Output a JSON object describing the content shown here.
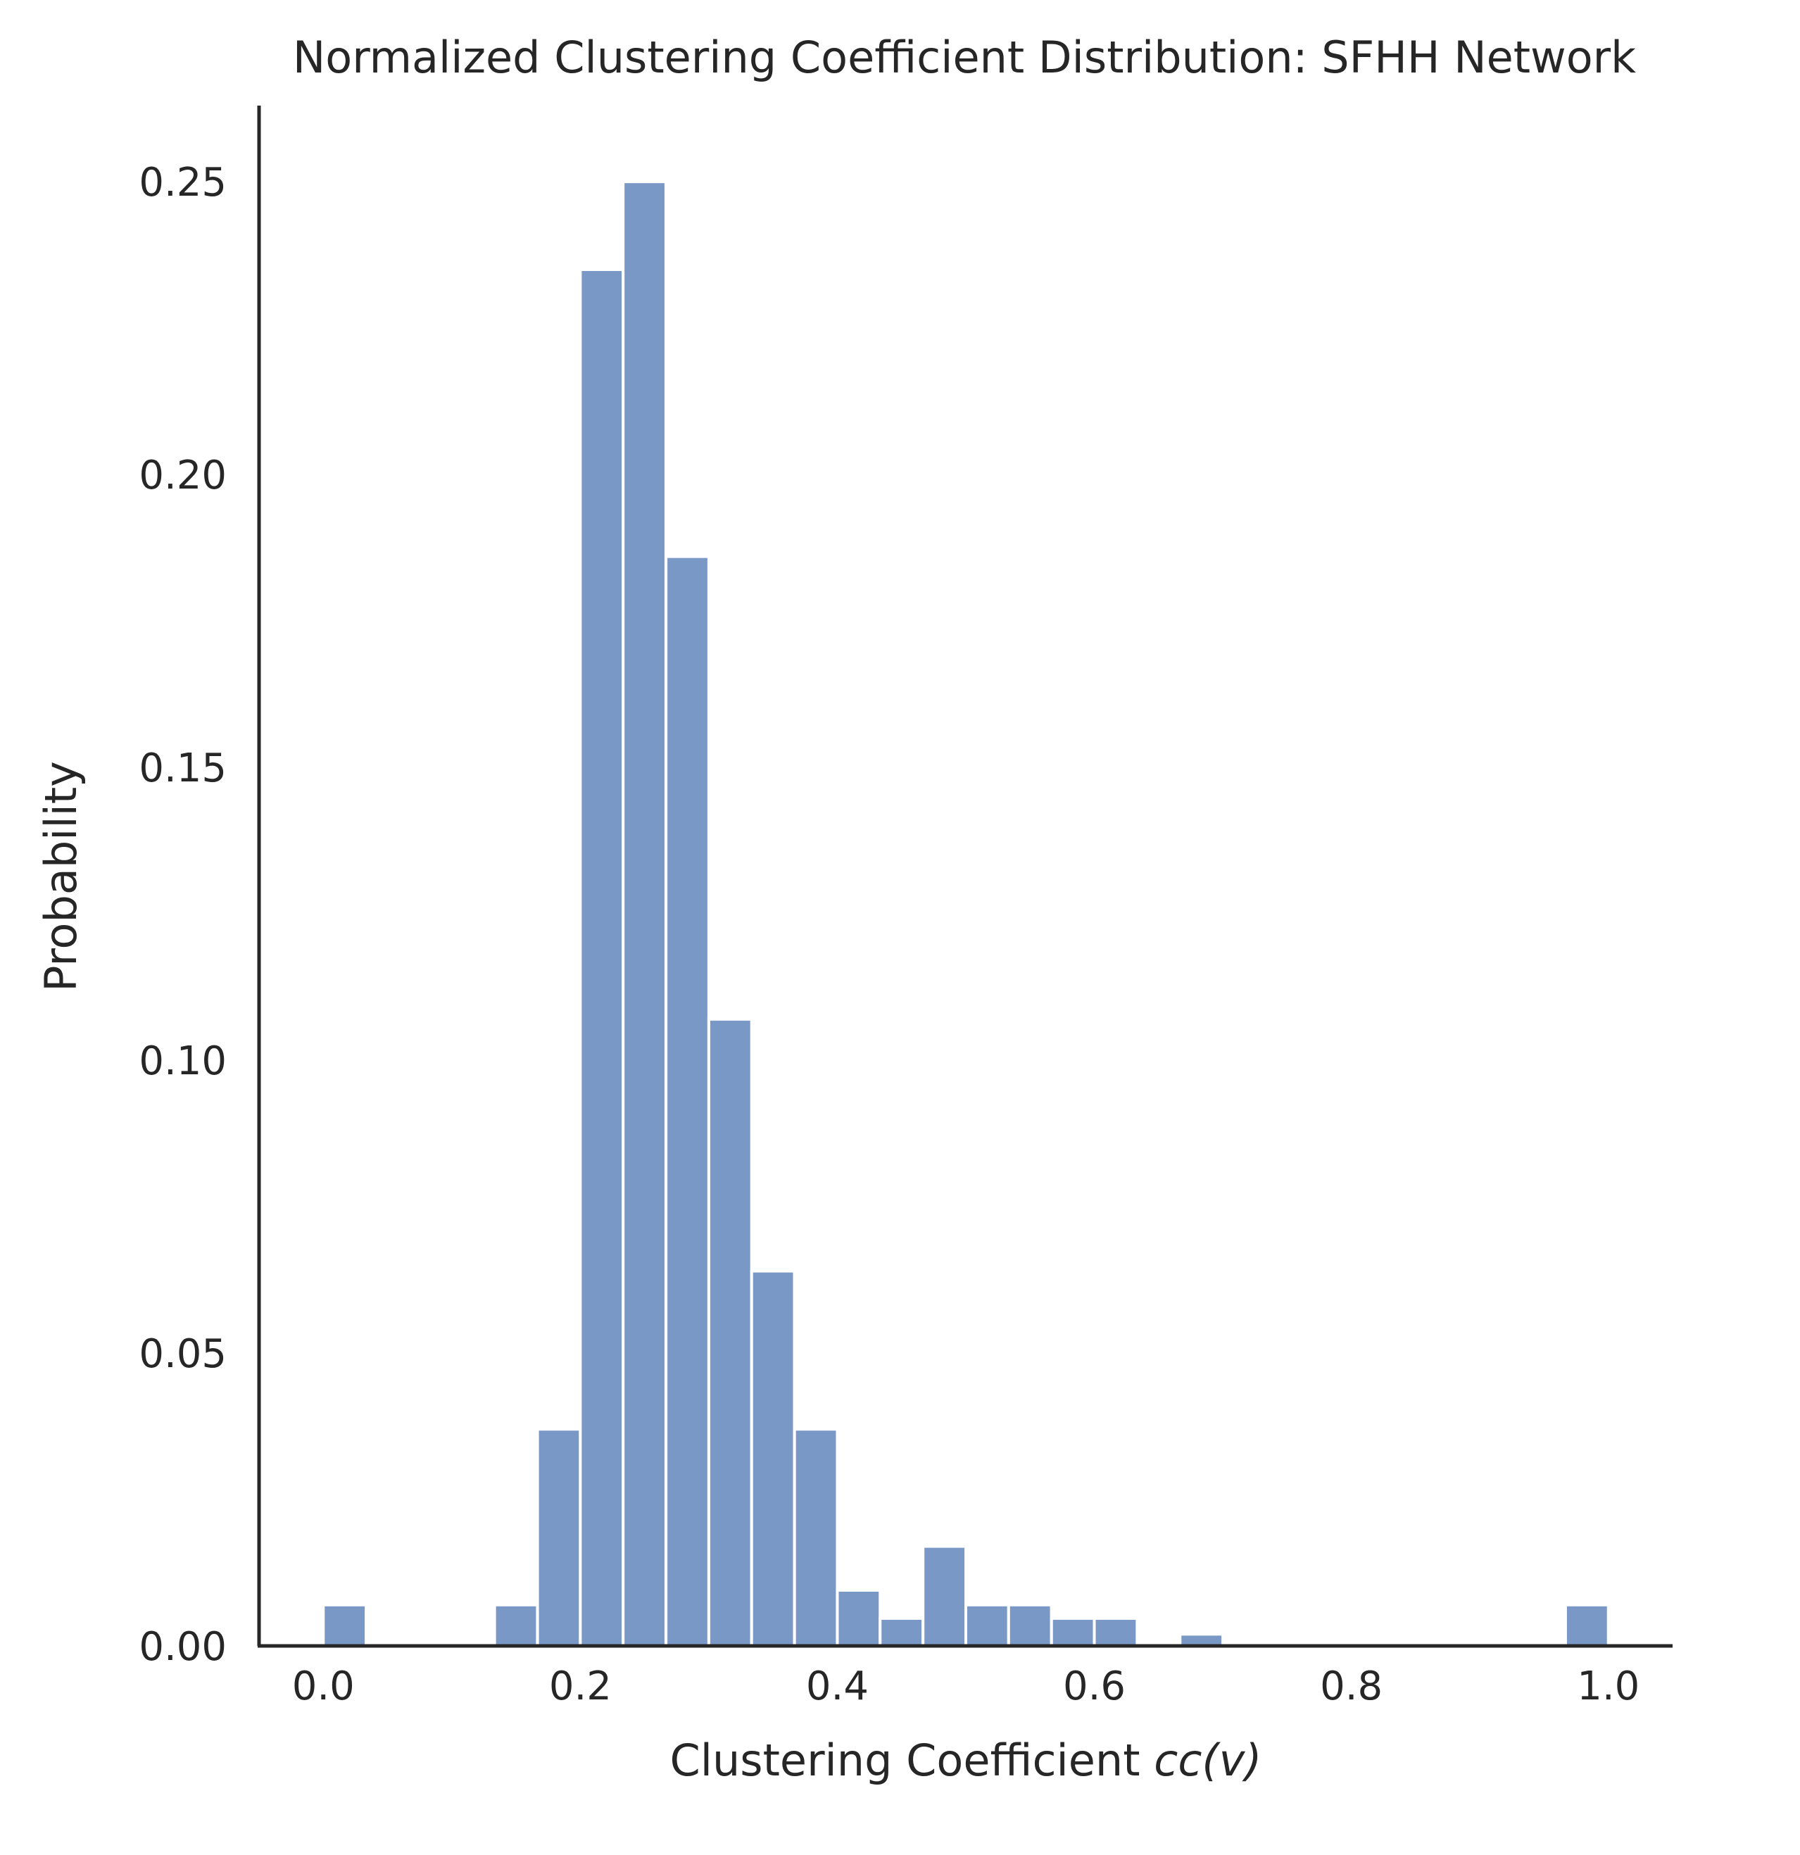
{
  "chart_data": {
    "type": "bar",
    "title": "Normalized Clustering Coefficient Distribution: SFHH Network",
    "xlabel": "Clustering Coefficient",
    "xlabel_math": "cc(v)",
    "ylabel": "Probability",
    "xlim": [
      -0.05,
      1.05
    ],
    "ylim": [
      0,
      0.263
    ],
    "xticks": [
      "0.0",
      "0.2",
      "0.4",
      "0.6",
      "0.8",
      "1.0"
    ],
    "xtick_values": [
      0.0,
      0.2,
      0.4,
      0.6,
      0.8,
      1.0
    ],
    "yticks": [
      "0.00",
      "0.05",
      "0.10",
      "0.15",
      "0.20",
      "0.25"
    ],
    "ytick_values": [
      0.0,
      0.05,
      0.1,
      0.15,
      0.2,
      0.25
    ],
    "bin_width": 0.0333,
    "bins": [
      {
        "x0": 0.0,
        "value": 0.007
      },
      {
        "x0": 0.0333,
        "value": 0.0
      },
      {
        "x0": 0.0667,
        "value": 0.0
      },
      {
        "x0": 0.1,
        "value": 0.0
      },
      {
        "x0": 0.1333,
        "value": 0.007
      },
      {
        "x0": 0.1667,
        "value": 0.037
      },
      {
        "x0": 0.2,
        "value": 0.235
      },
      {
        "x0": 0.2333,
        "value": 0.25
      },
      {
        "x0": 0.2667,
        "value": 0.186
      },
      {
        "x0": 0.3,
        "value": 0.107
      },
      {
        "x0": 0.3333,
        "value": 0.064
      },
      {
        "x0": 0.3667,
        "value": 0.037
      },
      {
        "x0": 0.4,
        "value": 0.0095
      },
      {
        "x0": 0.4333,
        "value": 0.0047
      },
      {
        "x0": 0.4667,
        "value": 0.017
      },
      {
        "x0": 0.5,
        "value": 0.007
      },
      {
        "x0": 0.5333,
        "value": 0.007
      },
      {
        "x0": 0.5667,
        "value": 0.0047
      },
      {
        "x0": 0.6,
        "value": 0.0047
      },
      {
        "x0": 0.6333,
        "value": 0.0
      },
      {
        "x0": 0.6667,
        "value": 0.002
      },
      {
        "x0": 0.9667,
        "value": 0.007
      }
    ],
    "grid": false,
    "bar_color": "#7A98C6",
    "axis_color": "#262626"
  }
}
